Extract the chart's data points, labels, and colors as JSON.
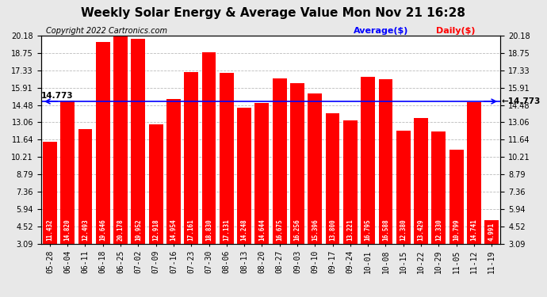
{
  "title": "Weekly Solar Energy & Average Value Mon Nov 21 16:28",
  "copyright": "Copyright 2022 Cartronics.com",
  "categories": [
    "05-28",
    "06-04",
    "06-11",
    "06-18",
    "06-25",
    "07-02",
    "07-09",
    "07-16",
    "07-23",
    "07-30",
    "08-06",
    "08-13",
    "08-20",
    "08-27",
    "09-03",
    "09-10",
    "09-17",
    "09-24",
    "10-01",
    "10-08",
    "10-15",
    "10-22",
    "10-29",
    "11-05",
    "11-12",
    "11-19"
  ],
  "values": [
    11.432,
    14.82,
    12.493,
    19.646,
    20.178,
    19.952,
    12.918,
    14.954,
    17.161,
    18.83,
    17.131,
    14.248,
    14.644,
    16.675,
    16.256,
    15.396,
    13.8,
    13.221,
    16.795,
    16.588,
    12.38,
    13.429,
    12.33,
    10.799,
    14.741,
    4.991
  ],
  "average": 14.773,
  "bar_color": "#ff0000",
  "average_line_color": "#0000ff",
  "grid_color": "#aaaaaa",
  "background_color": "#e8e8e8",
  "plot_bg_color": "#ffffff",
  "ylim_min": 3.09,
  "ylim_max": 20.18,
  "yticks": [
    3.09,
    4.52,
    5.94,
    7.36,
    8.79,
    10.21,
    11.64,
    13.06,
    14.48,
    15.91,
    17.33,
    18.75,
    20.18
  ],
  "avg_label": "14.773",
  "legend_avg_label": "Average($)",
  "legend_daily_label": "Daily($)",
  "legend_avg_color": "#0000ff",
  "legend_daily_color": "#ff0000",
  "title_fontsize": 11,
  "copyright_fontsize": 7,
  "bar_label_fontsize": 5.5,
  "tick_fontsize": 7,
  "avg_annotation_fontsize": 7.5
}
